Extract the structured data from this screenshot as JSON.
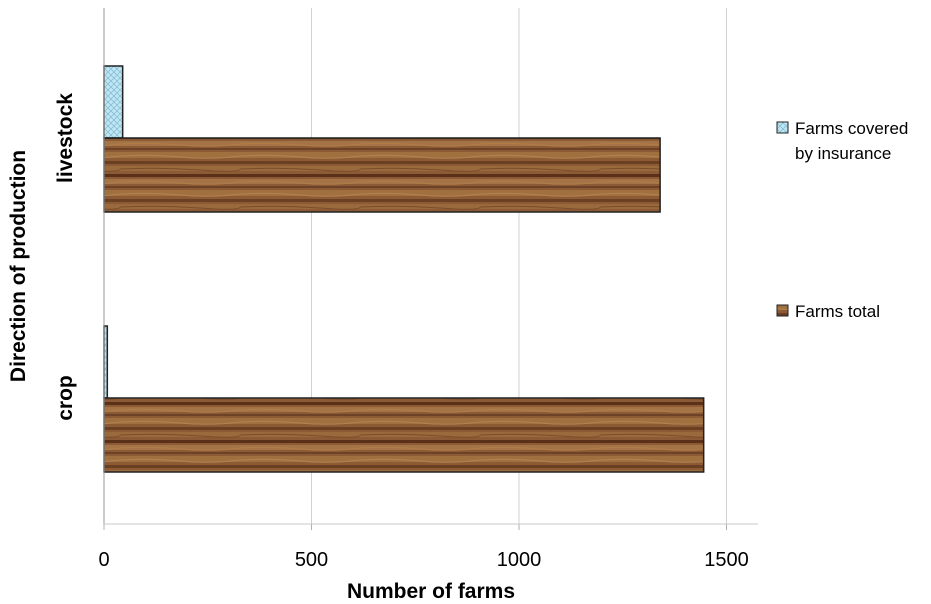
{
  "chart_data": {
    "type": "bar",
    "orientation": "horizontal",
    "categories": [
      "livestock",
      "crop"
    ],
    "series": [
      {
        "name": "Farms covered by insurance",
        "values": [
          45,
          8
        ],
        "color": "#bfe6f2",
        "pattern": "crosshatch"
      },
      {
        "name": "Farms total",
        "values": [
          1340,
          1445
        ],
        "color": "#8a5a33",
        "pattern": "wood"
      }
    ],
    "title": "",
    "xlabel": "Number of farms",
    "ylabel": "Direction of production",
    "xlim": [
      0,
      1580
    ],
    "xticks": [
      0,
      500,
      1000,
      1500
    ],
    "grid": "vertical",
    "legend": "right",
    "legend_entries": [
      {
        "lines": [
          "Farms covered",
          "by insurance"
        ],
        "series": 0
      },
      {
        "lines": [
          "Farms total"
        ],
        "series": 1
      }
    ]
  }
}
